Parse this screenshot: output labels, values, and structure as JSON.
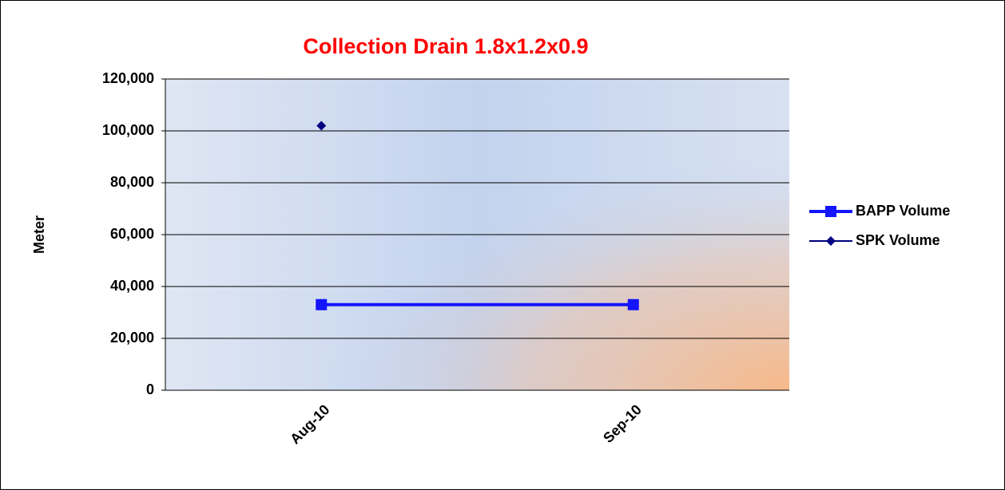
{
  "chart_data": {
    "type": "line",
    "title": "Collection Drain 1.8x1.2x0.9",
    "ylabel": "Meter",
    "categories": [
      "Aug-10",
      "Sep-10"
    ],
    "series": [
      {
        "name": "BAPP Volume",
        "color": "#1414ff",
        "marker": "square",
        "values": [
          33000,
          33000
        ]
      },
      {
        "name": "SPK Volume",
        "color": "#000080",
        "marker": "diamond",
        "values": [
          102000,
          null
        ]
      }
    ],
    "ylim": [
      0,
      120000
    ],
    "yticks": [
      0,
      {
        "value": 20000,
        "label": "20,000"
      },
      {
        "value": 40000,
        "label": "40,000"
      },
      {
        "value": 60000,
        "label": "60,000"
      },
      {
        "value": 80000,
        "label": "80,000"
      },
      {
        "value": 100000,
        "label": "100,000"
      },
      {
        "value": 120000,
        "label": "120,000"
      }
    ],
    "grid": true,
    "legend": "right"
  }
}
